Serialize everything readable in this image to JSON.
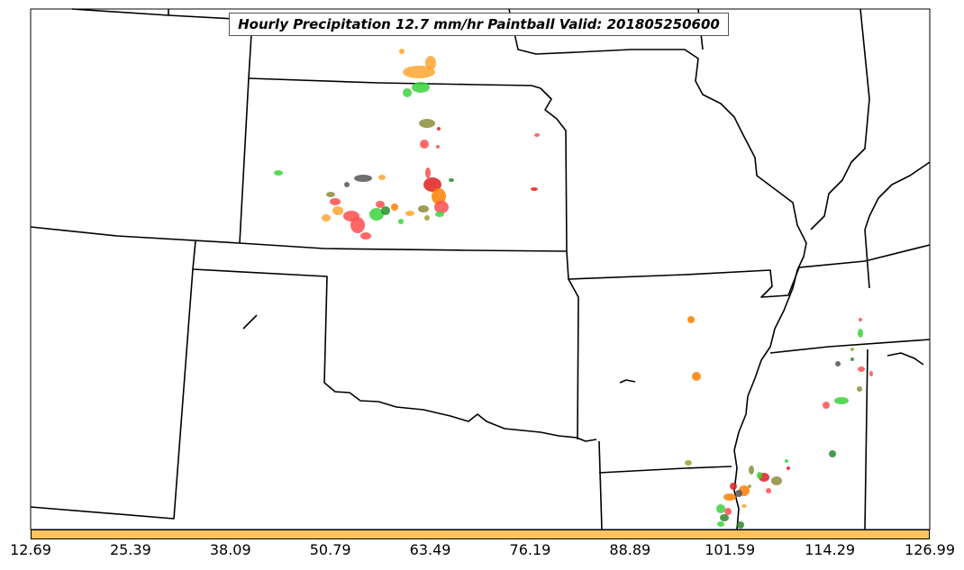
{
  "map": {
    "title": "Hourly Precipitation 12.7 mm/hr Paintball Valid: 201805250600",
    "colorbar": {
      "color": "#ffc45e",
      "ticks": [
        "12.69",
        "25.39",
        "38.09",
        "50.79",
        "63.49",
        "76.19",
        "88.89",
        "101.59",
        "114.29",
        "126.99"
      ]
    },
    "member_colors": [
      "#ffa52e",
      "#3ad43a",
      "#ff4d4d",
      "#8c8c3a",
      "#555555",
      "#ff7f00",
      "#e02020",
      "#2a8a2a",
      "#a0a030"
    ]
  }
}
